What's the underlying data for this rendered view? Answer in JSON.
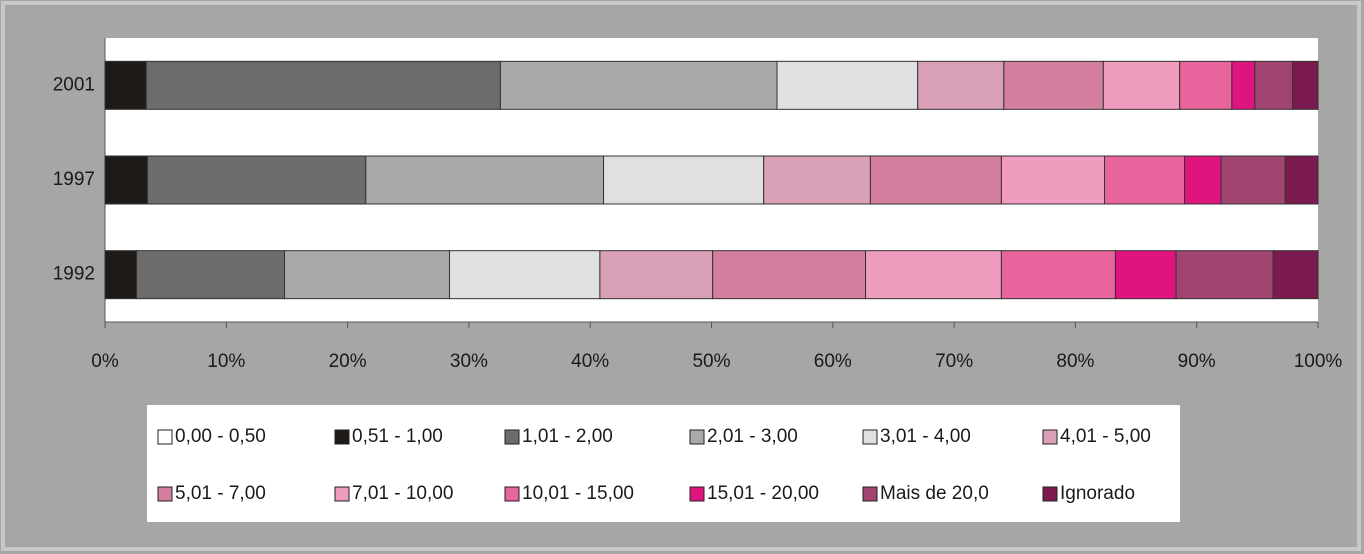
{
  "chart_data": {
    "type": "stacked-barh",
    "categories": [
      "2001",
      "1997",
      "1992"
    ],
    "xlim": [
      0,
      100
    ],
    "xticks": [
      {
        "value": 0,
        "label": "0%"
      },
      {
        "value": 10,
        "label": "10%"
      },
      {
        "value": 20,
        "label": "20%"
      },
      {
        "value": 30,
        "label": "30%"
      },
      {
        "value": 40,
        "label": "40%"
      },
      {
        "value": 50,
        "label": "50%"
      },
      {
        "value": 60,
        "label": "60%"
      },
      {
        "value": 70,
        "label": "70%"
      },
      {
        "value": 80,
        "label": "80%"
      },
      {
        "value": 90,
        "label": "90%"
      },
      {
        "value": 100,
        "label": "100%"
      }
    ],
    "grid": false,
    "series": [
      {
        "name": "0,00 - 0,50",
        "color": "#ffffff",
        "values": [
          0,
          0,
          0
        ]
      },
      {
        "name": "0,51 - 1,00",
        "color": "#1e1a18",
        "values": [
          3.4,
          3.5,
          2.6
        ]
      },
      {
        "name": "1,01 - 2,00",
        "color": "#6e6c6a",
        "values": [
          29.2,
          18.0,
          12.2
        ]
      },
      {
        "name": "2,01 - 3,00",
        "color": "#a9a9a9",
        "values": [
          22.8,
          19.6,
          13.6
        ]
      },
      {
        "name": "3,01 - 4,00",
        "color": "#e0e0e0",
        "values": [
          11.6,
          13.2,
          12.4
        ]
      },
      {
        "name": "4,01 - 5,00",
        "color": "#d9a0b8",
        "values": [
          7.1,
          8.8,
          9.3
        ]
      },
      {
        "name": "5,01 - 7,00",
        "color": "#d47fa0",
        "values": [
          8.2,
          10.8,
          12.6
        ]
      },
      {
        "name": "7,01 - 10,00",
        "color": "#ef9cbf",
        "values": [
          6.3,
          8.5,
          11.2
        ]
      },
      {
        "name": "10,01 - 15,00",
        "color": "#e8649c",
        "values": [
          4.3,
          6.6,
          9.4
        ]
      },
      {
        "name": "15,01 - 20,00",
        "color": "#e0147f",
        "values": [
          1.9,
          3.0,
          5.0
        ]
      },
      {
        "name": "Mais de 20,0",
        "color": "#a04470",
        "values": [
          3.1,
          5.3,
          8.0
        ]
      },
      {
        "name": "Ignorado",
        "color": "#7a1a4e",
        "values": [
          2.1,
          2.7,
          3.7
        ]
      }
    ]
  }
}
